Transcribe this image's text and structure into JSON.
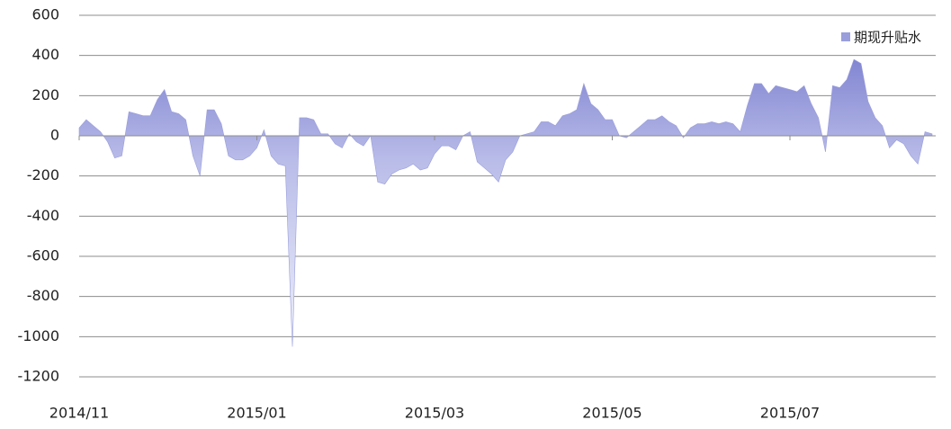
{
  "chart_data": {
    "type": "area",
    "categories": [
      "2014/11",
      null,
      null,
      null,
      null,
      null,
      null,
      null,
      null,
      null,
      null,
      null,
      null,
      null,
      null,
      null,
      null,
      null,
      null,
      null,
      null,
      null,
      null,
      null,
      null,
      "2015/01",
      null,
      null,
      null,
      null,
      null,
      null,
      null,
      null,
      null,
      null,
      null,
      null,
      null,
      null,
      null,
      null,
      null,
      null,
      null,
      null,
      null,
      null,
      null,
      null,
      "2015/03",
      null,
      null,
      null,
      null,
      null,
      null,
      null,
      null,
      null,
      null,
      null,
      null,
      null,
      null,
      null,
      null,
      null,
      null,
      null,
      null,
      null,
      null,
      null,
      null,
      "2015/05",
      null,
      null,
      null,
      null,
      null,
      null,
      null,
      null,
      null,
      null,
      null,
      null,
      null,
      null,
      null,
      null,
      null,
      null,
      null,
      null,
      null,
      null,
      null,
      null,
      "2015/07",
      null,
      null,
      null,
      null,
      null,
      null,
      null,
      null,
      null,
      null,
      null,
      null,
      null,
      null,
      null,
      null,
      null,
      null,
      null,
      null
    ],
    "series": [
      {
        "name": "期现升贴水",
        "color": "#9a9edb",
        "values": [
          40,
          80,
          50,
          20,
          -30,
          -110,
          -100,
          120,
          110,
          100,
          100,
          180,
          230,
          120,
          110,
          80,
          -100,
          -200,
          130,
          130,
          60,
          -100,
          -120,
          -120,
          -100,
          -60,
          30,
          -100,
          -140,
          -150,
          -1050,
          90,
          90,
          80,
          10,
          10,
          -40,
          -60,
          10,
          -30,
          -50,
          0,
          -230,
          -240,
          -190,
          -170,
          -160,
          -140,
          -170,
          -160,
          -90,
          -50,
          -50,
          -70,
          0,
          20,
          -130,
          -160,
          -190,
          -230,
          -120,
          -80,
          0,
          10,
          20,
          70,
          70,
          50,
          100,
          110,
          130,
          260,
          160,
          130,
          80,
          80,
          0,
          -10,
          20,
          50,
          80,
          80,
          100,
          70,
          50,
          -10,
          40,
          60,
          60,
          70,
          60,
          70,
          60,
          20,
          150,
          260,
          260,
          210,
          250,
          240,
          230,
          220,
          250,
          160,
          90,
          -80,
          250,
          240,
          280,
          380,
          360,
          170,
          90,
          50,
          -60,
          -20,
          -40,
          -100,
          -140,
          20,
          10
        ]
      }
    ],
    "ylim": [
      -1200,
      600
    ],
    "yticks": [
      -1200,
      -1000,
      -800,
      -600,
      -400,
      -200,
      0,
      200,
      400,
      600
    ],
    "grid": true,
    "legend": "top-right"
  }
}
